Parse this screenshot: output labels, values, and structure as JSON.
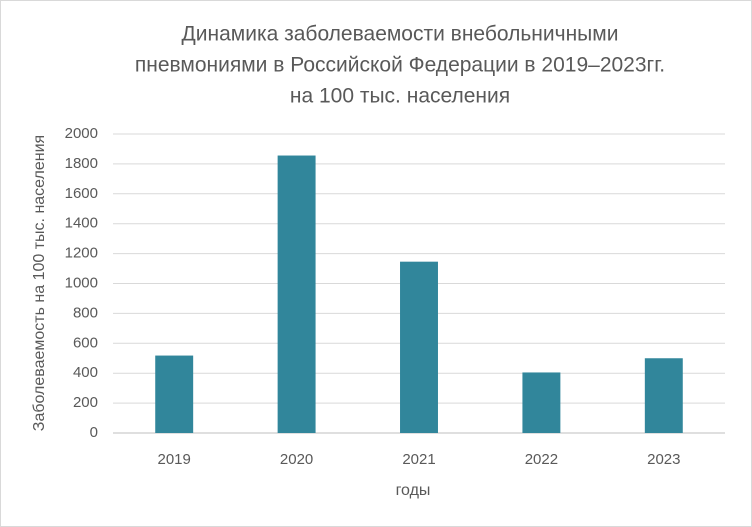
{
  "chart_data": {
    "type": "bar",
    "title": [
      "Динамика заболеваемости внебольничными",
      "пневмониями в Российской Федерации в 2019–2023гг.",
      "на 100 тыс. населения"
    ],
    "x_label": "годы",
    "y_label": "Заболеваемость на 100 тыс. населения",
    "categories": [
      "2019",
      "2020",
      "2021",
      "2022",
      "2023"
    ],
    "values": [
      518,
      1856,
      1146,
      405,
      500
    ],
    "color": "#31869b",
    "ylim": [
      0,
      2000
    ],
    "yticks": [
      0,
      200,
      400,
      600,
      800,
      1000,
      1200,
      1400,
      1600,
      1800,
      2000
    ],
    "grid": true
  }
}
